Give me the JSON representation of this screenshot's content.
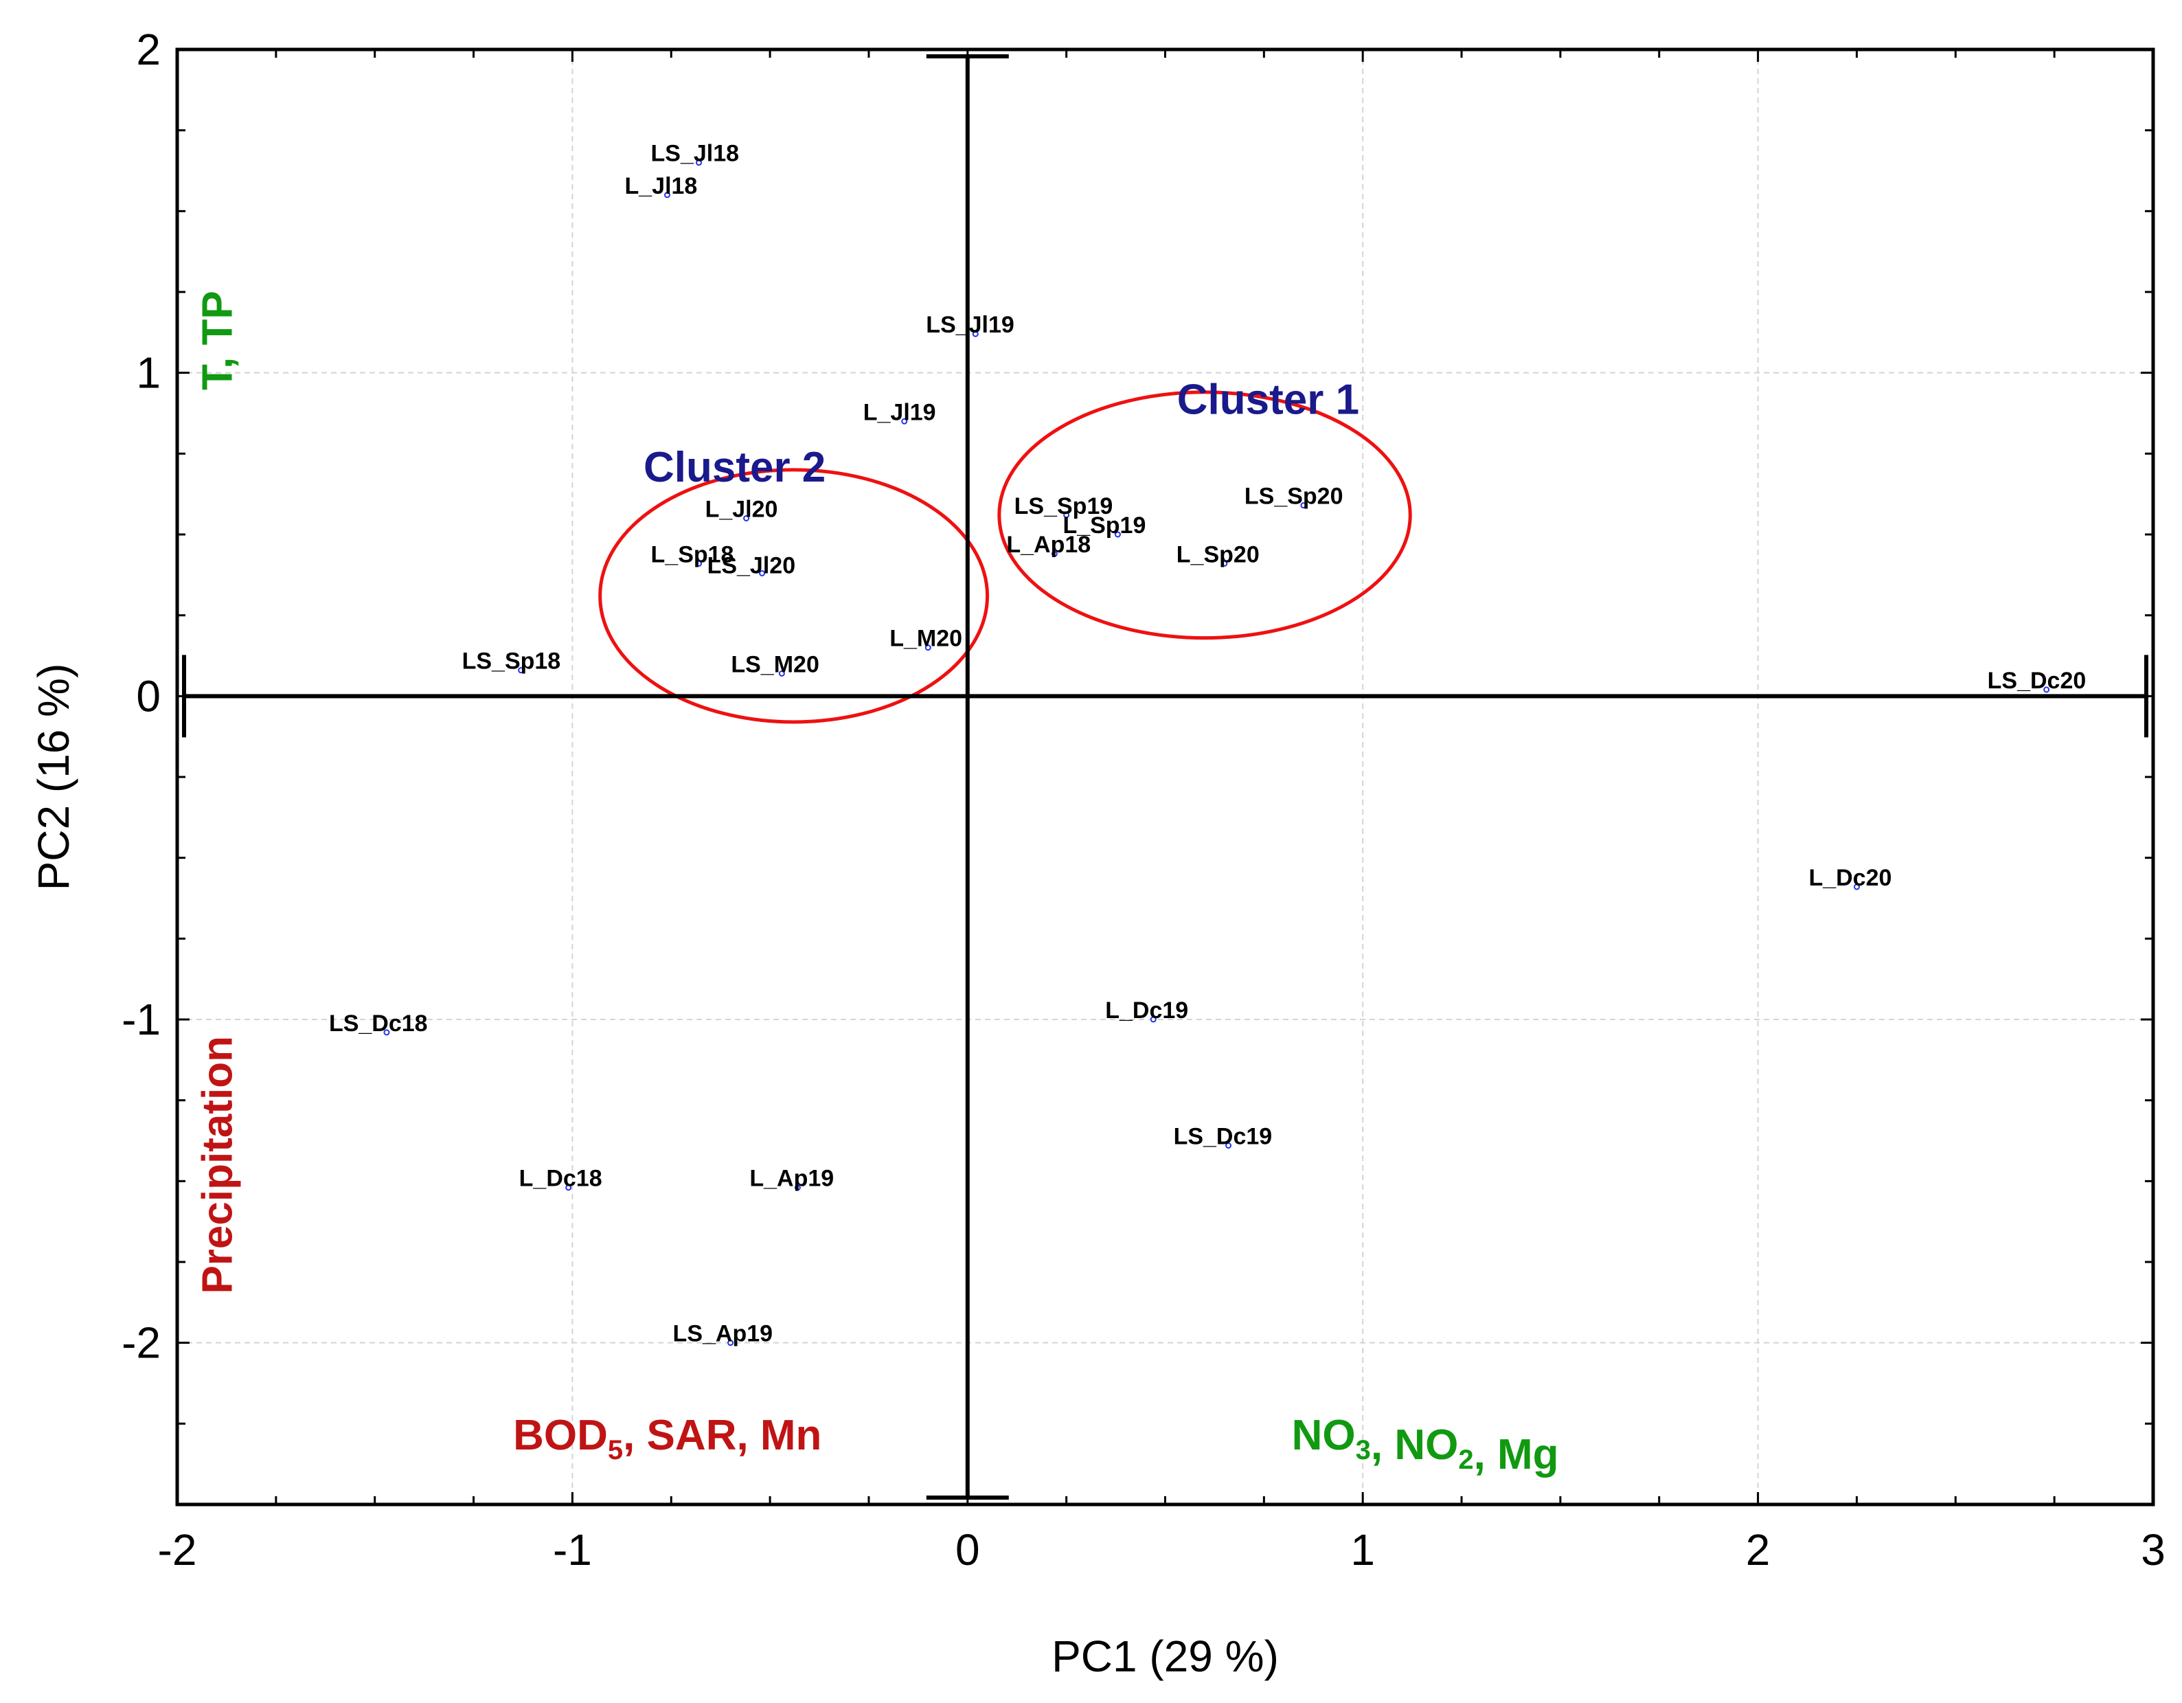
{
  "chart_data": {
    "type": "scatter",
    "title": "",
    "xlabel": "PC1 (29 %)",
    "ylabel": "PC2 (16 %)",
    "xlim": [
      -2,
      3
    ],
    "ylim": [
      -2.5,
      2
    ],
    "xticks": [
      "-2",
      "-1",
      "0",
      "1",
      "2",
      "3"
    ],
    "yticks": [
      "2",
      "1",
      "0",
      "-1",
      "-2"
    ],
    "grid": true,
    "points": [
      {
        "label": "LS_Jl18",
        "x": -0.68,
        "y": 1.65
      },
      {
        "label": "L_Jl18",
        "x": -0.76,
        "y": 1.55
      },
      {
        "label": "LS_Jl19",
        "x": 0.02,
        "y": 1.12
      },
      {
        "label": "L_Jl19",
        "x": -0.16,
        "y": 0.85
      },
      {
        "label": "L_Jl20",
        "x": -0.56,
        "y": 0.55
      },
      {
        "label": "L_Sp18",
        "x": -0.68,
        "y": 0.41
      },
      {
        "label": "LS_Jl20",
        "x": -0.52,
        "y": 0.38
      },
      {
        "label": "LS_Sp18",
        "x": -1.13,
        "y": 0.08
      },
      {
        "label": "LS_M20",
        "x": -0.47,
        "y": 0.07
      },
      {
        "label": "L_M20",
        "x": -0.1,
        "y": 0.15
      },
      {
        "label": "LS_Sp19",
        "x": 0.25,
        "y": 0.56
      },
      {
        "label": "L_Sp19",
        "x": 0.38,
        "y": 0.5
      },
      {
        "label": "L_Ap18",
        "x": 0.22,
        "y": 0.44
      },
      {
        "label": "LS_Sp20",
        "x": 0.85,
        "y": 0.59
      },
      {
        "label": "L_Sp20",
        "x": 0.65,
        "y": 0.41
      },
      {
        "label": "LS_Dc20",
        "x": 2.73,
        "y": 0.02
      },
      {
        "label": "L_Dc20",
        "x": 2.25,
        "y": -0.59
      },
      {
        "label": "L_Dc19",
        "x": 0.47,
        "y": -1.0
      },
      {
        "label": "LS_Dc19",
        "x": 0.66,
        "y": -1.39
      },
      {
        "label": "LS_Dc18",
        "x": -1.47,
        "y": -1.04
      },
      {
        "label": "L_Dc18",
        "x": -1.01,
        "y": -1.52
      },
      {
        "label": "L_Ap19",
        "x": -0.43,
        "y": -1.52
      },
      {
        "label": "LS_Ap19",
        "x": -0.6,
        "y": -2.0
      }
    ],
    "clusters": [
      {
        "name": "Cluster 1",
        "cx": 0.6,
        "cy": 0.56,
        "rx": 0.52,
        "ry": 0.38
      },
      {
        "name": "Cluster 2",
        "cx": -0.44,
        "cy": 0.31,
        "rx": 0.49,
        "ry": 0.39
      }
    ],
    "variable_annotations": [
      {
        "id": "t_tp",
        "text": "T, TP",
        "color": "#119911",
        "x": -1.9,
        "y": 1.1,
        "rotate": true
      },
      {
        "id": "precip",
        "text": "Precipitation",
        "color": "#c01414",
        "x": -1.9,
        "y": -1.45,
        "rotate": true
      },
      {
        "id": "bod",
        "base": "BOD",
        "sub": "5",
        "rest": ", SAR, Mn",
        "color": "#c01414",
        "x": -1.15,
        "y": -2.33
      },
      {
        "id": "no3",
        "parts": [
          [
            "NO",
            "3"
          ],
          [
            ", NO",
            "2"
          ],
          [
            ", Mg",
            ""
          ]
        ],
        "color": "#119911",
        "x": 0.82,
        "y": -2.33
      }
    ],
    "colors": {
      "point": "#2233ee",
      "cluster_ellipse": "#ee1111",
      "cluster_text": "#1a1a8c",
      "grid": "#d4d4d4",
      "axes": "#000000"
    }
  }
}
